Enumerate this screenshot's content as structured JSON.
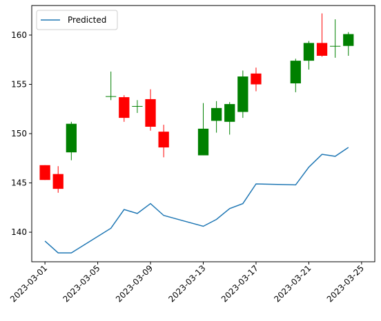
{
  "chart_data": {
    "type": "candlestick",
    "title": "",
    "xlabel": "",
    "ylabel": "",
    "xlim": [
      "2023-02-28",
      "2023-03-26"
    ],
    "ylim": [
      137,
      163
    ],
    "grid": false,
    "legend": {
      "position": "top-left",
      "entries": [
        "Predicted"
      ]
    },
    "x_ticks": [
      "2023-03-01",
      "2023-03-05",
      "2023-03-09",
      "2023-03-13",
      "2023-03-17",
      "2023-03-21",
      "2023-03-25"
    ],
    "y_ticks": [
      140,
      145,
      150,
      155,
      160
    ],
    "colors": {
      "up": "#008000",
      "down": "#ff0000",
      "line": "#1f77b4"
    },
    "candles": [
      {
        "date": "2023-03-01",
        "open": 146.8,
        "high": 146.8,
        "low": 145.3,
        "close": 145.3
      },
      {
        "date": "2023-03-02",
        "open": 145.9,
        "high": 146.7,
        "low": 144.0,
        "close": 144.4
      },
      {
        "date": "2023-03-03",
        "open": 148.1,
        "high": 151.2,
        "low": 147.3,
        "close": 151.0
      },
      {
        "date": "2023-03-06",
        "open": 153.8,
        "high": 156.3,
        "low": 153.4,
        "close": 153.8
      },
      {
        "date": "2023-03-07",
        "open": 153.7,
        "high": 153.9,
        "low": 151.2,
        "close": 151.6
      },
      {
        "date": "2023-03-08",
        "open": 152.8,
        "high": 153.4,
        "low": 152.1,
        "close": 152.8
      },
      {
        "date": "2023-03-09",
        "open": 153.5,
        "high": 154.5,
        "low": 150.3,
        "close": 150.7
      },
      {
        "date": "2023-03-10",
        "open": 150.2,
        "high": 150.9,
        "low": 147.6,
        "close": 148.6
      },
      {
        "date": "2023-03-13",
        "open": 147.8,
        "high": 153.1,
        "low": 147.8,
        "close": 150.5
      },
      {
        "date": "2023-03-14",
        "open": 151.3,
        "high": 153.3,
        "low": 150.1,
        "close": 152.6
      },
      {
        "date": "2023-03-15",
        "open": 151.2,
        "high": 153.2,
        "low": 149.9,
        "close": 153.0
      },
      {
        "date": "2023-03-16",
        "open": 152.2,
        "high": 156.4,
        "low": 151.6,
        "close": 155.8
      },
      {
        "date": "2023-03-17",
        "open": 156.1,
        "high": 156.7,
        "low": 154.3,
        "close": 155.0
      },
      {
        "date": "2023-03-20",
        "open": 155.1,
        "high": 157.6,
        "low": 154.2,
        "close": 157.4
      },
      {
        "date": "2023-03-21",
        "open": 157.4,
        "high": 159.4,
        "low": 156.5,
        "close": 159.2
      },
      {
        "date": "2023-03-22",
        "open": 159.2,
        "high": 162.2,
        "low": 157.8,
        "close": 157.9
      },
      {
        "date": "2023-03-23",
        "open": 158.9,
        "high": 161.6,
        "low": 157.7,
        "close": 158.9
      },
      {
        "date": "2023-03-24",
        "open": 158.9,
        "high": 160.3,
        "low": 157.9,
        "close": 160.1
      }
    ],
    "series": [
      {
        "name": "Predicted",
        "x": [
          "2023-03-01",
          "2023-03-02",
          "2023-03-03",
          "2023-03-06",
          "2023-03-07",
          "2023-03-08",
          "2023-03-09",
          "2023-03-10",
          "2023-03-13",
          "2023-03-14",
          "2023-03-15",
          "2023-03-16",
          "2023-03-17",
          "2023-03-20",
          "2023-03-21",
          "2023-03-22",
          "2023-03-23",
          "2023-03-24"
        ],
        "values": [
          139.1,
          137.9,
          137.9,
          140.4,
          142.3,
          141.9,
          142.9,
          141.7,
          140.6,
          141.3,
          142.4,
          142.9,
          144.9,
          144.8,
          146.6,
          147.9,
          147.7,
          148.6
        ]
      }
    ]
  }
}
